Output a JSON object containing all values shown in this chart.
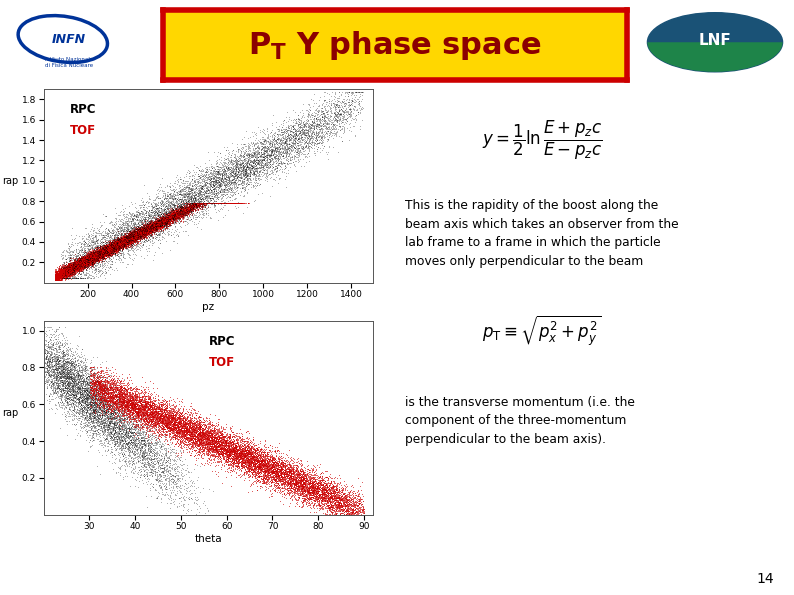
{
  "title_latex": "$\\mathbf{P_T\\ Y\\ phase\\ space}$",
  "background_color": "#ffffff",
  "header_bg": "#FFD700",
  "header_border": "#cc0000",
  "header_text_color": "#8B0000",
  "slide_number": "14",
  "text_body1": "This is the rapidity of the boost along the\nbeam axis which takes an observer from the\nlab frame to a frame in which the particle\nmoves only perpendicular to the beam",
  "text_body2": "is the transverse momentum (i.e. the\ncomponent of the three-momentum\nperpendicular to the beam axis).",
  "plot1": {
    "xlabel": "pz",
    "ylabel": "rap",
    "xlim": [
      0,
      1500
    ],
    "ylim": [
      0,
      1.9
    ],
    "xticks": [
      200,
      400,
      600,
      800,
      1000,
      1200,
      1400
    ],
    "yticks": [
      0.2,
      0.4,
      0.6,
      0.8,
      1.0,
      1.2,
      1.4,
      1.6,
      1.8
    ],
    "rpc_label": "RPC",
    "tof_label": "TOF",
    "rpc_color": "#000000",
    "tof_color": "#cc0000",
    "n_rpc": 10000,
    "n_tof": 15000
  },
  "plot2": {
    "xlabel": "theta",
    "ylabel": "rap",
    "xlim": [
      20,
      92
    ],
    "ylim": [
      0,
      1.05
    ],
    "xticks": [
      30,
      40,
      50,
      60,
      70,
      80,
      90
    ],
    "yticks": [
      0.2,
      0.4,
      0.6,
      0.8,
      1.0
    ],
    "rpc_label": "RPC",
    "tof_label": "TOF",
    "rpc_color": "#000000",
    "tof_color": "#cc0000",
    "n_rpc": 8000,
    "n_tof": 15000
  }
}
